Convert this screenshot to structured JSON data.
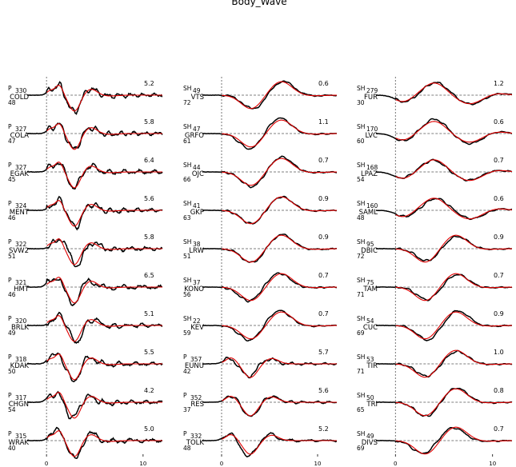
{
  "chart_data": {
    "type": "line",
    "title": "Body_Wave",
    "x_range": [
      -2,
      12
    ],
    "x_ticks": [
      0,
      10
    ],
    "colors": {
      "observed": "#000000",
      "synthetic": "#e00000",
      "guide": "#555555"
    },
    "columns": [
      {
        "stations": [
          {
            "phase": "P",
            "name": "COLD",
            "azimuth": "330",
            "distance": "48",
            "amp": "5.2",
            "shape": "pnarrow"
          },
          {
            "phase": "P",
            "name": "COLA",
            "azimuth": "327",
            "distance": "47",
            "amp": "5.8",
            "shape": "pnarrow"
          },
          {
            "phase": "P",
            "name": "EGAK",
            "azimuth": "327",
            "distance": "45",
            "amp": "6.4",
            "shape": "pnarrow"
          },
          {
            "phase": "P",
            "name": "MENT",
            "azimuth": "324",
            "distance": "46",
            "amp": "5.6",
            "shape": "pnarrow"
          },
          {
            "phase": "P",
            "name": "SVW2",
            "azimuth": "322",
            "distance": "51",
            "amp": "5.8",
            "shape": "pnarrow"
          },
          {
            "phase": "P",
            "name": "HMT",
            "azimuth": "321",
            "distance": "46",
            "amp": "6.5",
            "shape": "pnarrow"
          },
          {
            "phase": "P",
            "name": "BRLK",
            "azimuth": "320",
            "distance": "49",
            "amp": "5.1",
            "shape": "pnarrow"
          },
          {
            "phase": "P",
            "name": "KDAK",
            "azimuth": "318",
            "distance": "50",
            "amp": "5.5",
            "shape": "pnarrow"
          },
          {
            "phase": "P",
            "name": "CHGN",
            "azimuth": "317",
            "distance": "54",
            "amp": "4.2",
            "shape": "pnarrow"
          },
          {
            "phase": "P",
            "name": "WRAK",
            "azimuth": "315",
            "distance": "40",
            "amp": "5.0",
            "shape": "pnarrow"
          }
        ]
      },
      {
        "stations": [
          {
            "phase": "SH",
            "name": "VTS",
            "azimuth": "49",
            "distance": "72",
            "amp": "0.6",
            "shape": "sh"
          },
          {
            "phase": "SH",
            "name": "GRFO",
            "azimuth": "47",
            "distance": "61",
            "amp": "1.1",
            "shape": "sh"
          },
          {
            "phase": "SH",
            "name": "OJC",
            "azimuth": "44",
            "distance": "66",
            "amp": "0.7",
            "shape": "sh"
          },
          {
            "phase": "SH",
            "name": "GKP",
            "azimuth": "41",
            "distance": "63",
            "amp": "0.9",
            "shape": "sh"
          },
          {
            "phase": "SH",
            "name": "LRW",
            "azimuth": "38",
            "distance": "51",
            "amp": "0.9",
            "shape": "sh"
          },
          {
            "phase": "SH",
            "name": "KONO",
            "azimuth": "37",
            "distance": "56",
            "amp": "0.7",
            "shape": "sh"
          },
          {
            "phase": "SH",
            "name": "KEV",
            "azimuth": "22",
            "distance": "59",
            "amp": "0.7",
            "shape": "sh"
          },
          {
            "phase": "P",
            "name": "EUNU",
            "azimuth": "357",
            "distance": "42",
            "amp": "5.7",
            "shape": "pmid"
          },
          {
            "phase": "P",
            "name": "RES",
            "azimuth": "352",
            "distance": "37",
            "amp": "5.6",
            "shape": "pmid"
          },
          {
            "phase": "P",
            "name": "TOLK",
            "azimuth": "332",
            "distance": "48",
            "amp": "5.2",
            "shape": "pmid"
          }
        ]
      },
      {
        "stations": [
          {
            "phase": "SH",
            "name": "FUR",
            "azimuth": "279",
            "distance": "30",
            "amp": "1.2",
            "shape": "shr"
          },
          {
            "phase": "SH",
            "name": "LVC",
            "azimuth": "170",
            "distance": "60",
            "amp": "0.6",
            "shape": "shr"
          },
          {
            "phase": "SH",
            "name": "LPAZ",
            "azimuth": "168",
            "distance": "54",
            "amp": "0.7",
            "shape": "shr"
          },
          {
            "phase": "SH",
            "name": "SAML",
            "azimuth": "160",
            "distance": "48",
            "amp": "0.6",
            "shape": "shr"
          },
          {
            "phase": "SH",
            "name": "DBIC",
            "azimuth": "95",
            "distance": "72",
            "amp": "0.9",
            "shape": "sh"
          },
          {
            "phase": "SH",
            "name": "TAM",
            "azimuth": "75",
            "distance": "71",
            "amp": "0.7",
            "shape": "sh"
          },
          {
            "phase": "SH",
            "name": "CUC",
            "azimuth": "54",
            "distance": "69",
            "amp": "0.9",
            "shape": "sh"
          },
          {
            "phase": "SH",
            "name": "TIR",
            "azimuth": "53",
            "distance": "71",
            "amp": "1.0",
            "shape": "sh"
          },
          {
            "phase": "SH",
            "name": "TRI",
            "azimuth": "50",
            "distance": "65",
            "amp": "0.8",
            "shape": "sh"
          },
          {
            "phase": "SH",
            "name": "DIVS",
            "azimuth": "49",
            "distance": "69",
            "amp": "0.7",
            "shape": "sh"
          }
        ]
      }
    ]
  }
}
